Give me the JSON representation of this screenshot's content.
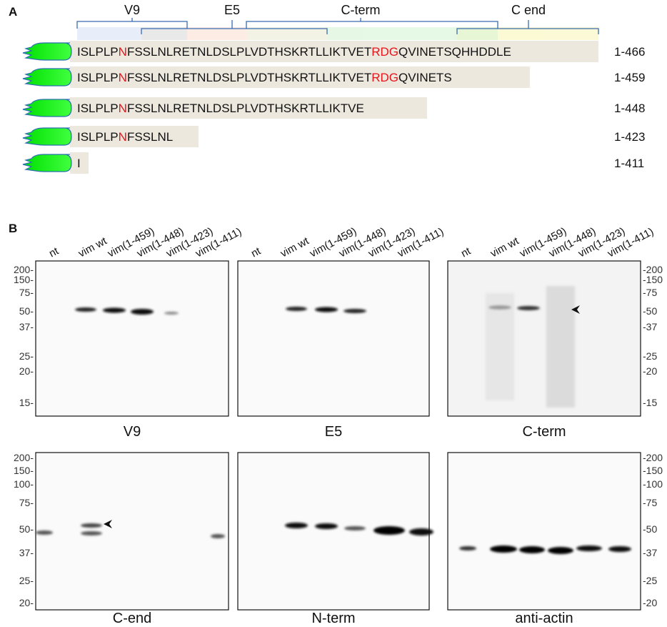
{
  "panel_a": {
    "label": "A",
    "epitopes": [
      "V9",
      "E5",
      "C-term",
      "C end"
    ],
    "constructs": [
      {
        "segments": [
          {
            "text": "ISLPLP",
            "highlight": false
          },
          {
            "text": "N",
            "highlight": true
          },
          {
            "text": "FSSLNLRETNLDSLPLVDTHSKRTLLIKTVET",
            "highlight": false
          },
          {
            "text": "RDG",
            "highlight": true
          },
          {
            "text": "QVINETSQHHDDLE",
            "highlight": false
          }
        ],
        "range": "1-466"
      },
      {
        "segments": [
          {
            "text": "ISLPLP",
            "highlight": false
          },
          {
            "text": "N",
            "highlight": true
          },
          {
            "text": "FSSLNLRETNLDSLPLVDTHSKRTLLIKTVET",
            "highlight": false
          },
          {
            "text": "RDG",
            "highlight": true
          },
          {
            "text": "QVINETS",
            "highlight": false
          }
        ],
        "range": "1-459"
      },
      {
        "segments": [
          {
            "text": "ISLPLP",
            "highlight": false
          },
          {
            "text": "N",
            "highlight": true
          },
          {
            "text": "FSSLNLRETNLDSLPLVDTHSKRTLLIKTVE",
            "highlight": false
          }
        ],
        "range": "1-448"
      },
      {
        "segments": [
          {
            "text": "ISLPLP",
            "highlight": false
          },
          {
            "text": "N",
            "highlight": true
          },
          {
            "text": "FSSLNL",
            "highlight": false
          }
        ],
        "range": "1-423"
      },
      {
        "segments": [
          {
            "text": "I",
            "highlight": false
          }
        ],
        "range": "1-411"
      }
    ]
  },
  "panel_b": {
    "label": "B",
    "lanes": [
      "nt",
      "vim wt",
      "vim(1-459)",
      "vim(1-448)",
      "vim(1-423)",
      "vim(1-411)"
    ],
    "blots": [
      "V9",
      "E5",
      "C-term",
      "C-end",
      "N-term",
      "anti-actin"
    ],
    "markers_top_left": [
      "200-",
      "150-",
      "75-",
      "50-",
      "37-",
      "25-",
      "20-",
      "15-"
    ],
    "markers_top_right": [
      "-200",
      "-150",
      "-75",
      "-50",
      "-37",
      "-25",
      "-20",
      "-15"
    ],
    "markers_bottom_left": [
      "200-",
      "150-",
      "100-",
      "75-",
      "50-",
      "37-",
      "25-",
      "20-"
    ],
    "markers_bottom_right": [
      "-200",
      "-150",
      "-100",
      "-75",
      "-50",
      "-37",
      "-25",
      "-20"
    ]
  }
}
